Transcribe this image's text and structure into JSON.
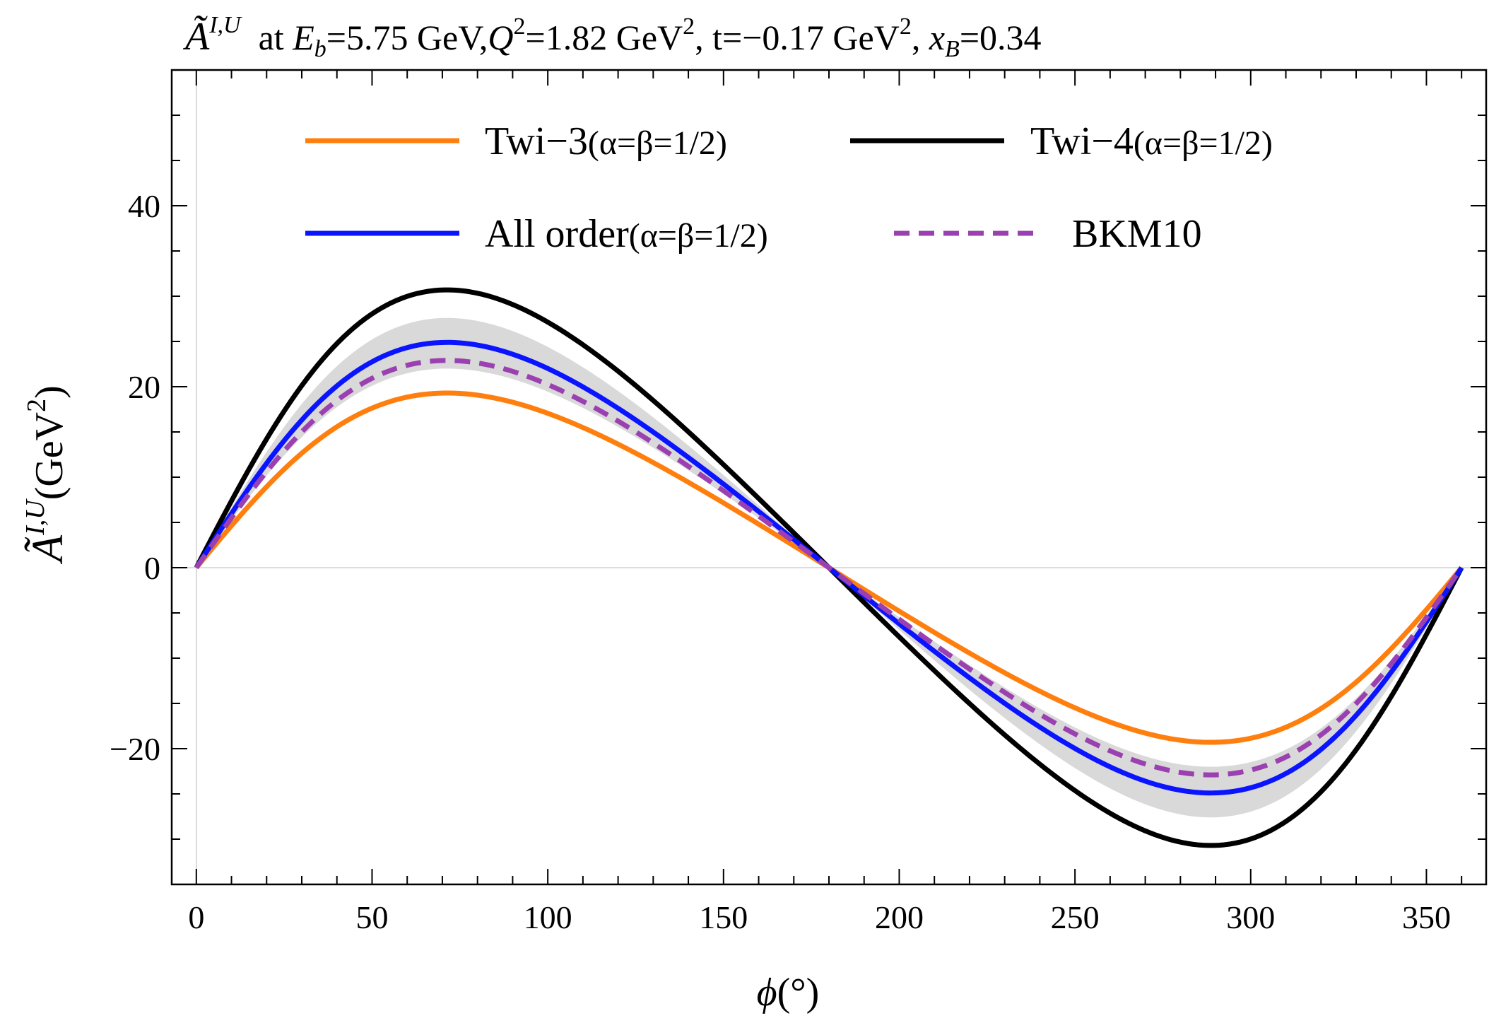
{
  "chart_data": {
    "type": "line",
    "title": "Ã^{I,U} at E_b=5.75 GeV,Q^2=1.82 GeV^2, t=−0.17 GeV^2, x_B=0.34",
    "title_parts": {
      "symbol": "Ã",
      "symbol_sup": "I,U",
      "at": "  at ",
      "eb_sym": "E",
      "eb_sub": "b",
      "eb_val": "=5.75 GeV,",
      "q_sym": "Q",
      "q_sup": "2",
      "q_val": "=1.82 GeV",
      "q_unit_sup": "2",
      "t_val": ", t=−0.17 GeV",
      "t_unit_sup": "2",
      "x_sep": ", ",
      "x_sym": "x",
      "x_sub": "B",
      "x_val": "=0.34"
    },
    "xlabel": "ϕ(°)",
    "xlabel_parts": {
      "sym": "ϕ",
      "unit": "(°)"
    },
    "ylabel": "Ã^{I,U}(GeV^2)",
    "ylabel_parts": {
      "sym": "Ã",
      "sup": "I,U",
      "unit": "(GeV",
      "unit_sup": "2",
      "close": ")"
    },
    "xlim": [
      -7,
      367
    ],
    "ylim": [
      -35,
      55
    ],
    "x_major_ticks": [
      0,
      50,
      100,
      150,
      200,
      250,
      300,
      350
    ],
    "y_major_ticks": [
      -20,
      0,
      20,
      40
    ],
    "x_minor_step": 10,
    "y_minor_step": 5,
    "x_tick_labels": [
      "0",
      "50",
      "100",
      "150",
      "200",
      "250",
      "300",
      "350"
    ],
    "y_tick_labels": [
      "−20",
      "0",
      "20",
      "40"
    ],
    "legend_position": "top",
    "series": [
      {
        "name": "Twi-3",
        "label_main": "Twi−3",
        "label_param": "(α=β=1/2)",
        "color": "#ff7f0e",
        "style": "solid",
        "amplitude": 19.3,
        "shape": 0.32
      },
      {
        "name": "Twi-4",
        "label_main": "Twi−4",
        "label_param": "(α=β=1/2)",
        "color": "#000000",
        "style": "solid",
        "amplitude": 30.7,
        "shape": 0.32
      },
      {
        "name": "All order",
        "label_main": "All order",
        "label_param": "(α=β=1/2)",
        "color": "#0a14ff",
        "style": "solid",
        "amplitude": 24.9,
        "shape": 0.32
      },
      {
        "name": "BKM10",
        "label_main": "BKM10",
        "label_param": "",
        "color": "#9b40b0",
        "style": "dashed",
        "amplitude": 22.9,
        "shape": 0.32
      }
    ],
    "band": {
      "name": "uncertainty band",
      "color": "#d9d9d9",
      "amplitude_low": 22.0,
      "amplitude_high": 27.6,
      "shape": 0.32
    }
  }
}
